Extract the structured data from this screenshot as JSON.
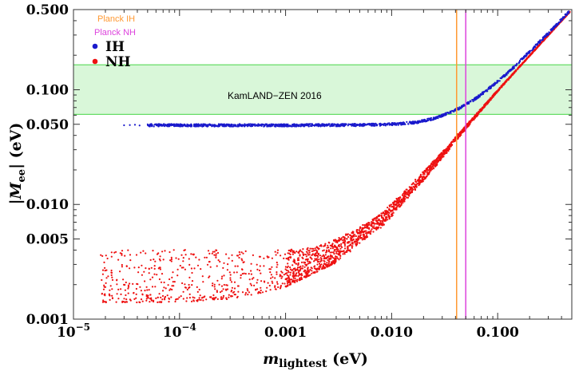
{
  "chart_data": {
    "type": "scatter",
    "xscale": "log",
    "yscale": "log",
    "xlim": [
      1e-05,
      0.5
    ],
    "ylim": [
      0.001,
      0.5
    ],
    "grid": false,
    "legend_placement": "top-left",
    "xlabel": {
      "main": "m",
      "sub": "lightest",
      "unit": " (eV)"
    },
    "ylabel": {
      "main": "|M",
      "sub": "ee",
      "unit": "| (eV)"
    },
    "x_ticks": [
      {
        "value": 1e-05,
        "base": "10",
        "exp": "−5"
      },
      {
        "value": 0.0001,
        "base": "10",
        "exp": "−4"
      },
      {
        "value": 0.001,
        "label": "0.001"
      },
      {
        "value": 0.01,
        "label": "0.010"
      },
      {
        "value": 0.1,
        "label": "0.100"
      }
    ],
    "y_ticks": [
      {
        "value": 0.001,
        "label": "0.001"
      },
      {
        "value": 0.005,
        "label": "0.005"
      },
      {
        "value": 0.01,
        "label": "0.010"
      },
      {
        "value": 0.05,
        "label": "0.050"
      },
      {
        "value": 0.1,
        "label": "0.100"
      },
      {
        "value": 0.5,
        "label": "0.500"
      }
    ],
    "band": {
      "label": "KamLAND−ZEN 2016",
      "ymin": 0.061,
      "ymax": 0.165,
      "fill": "#d9f7d9",
      "edge": "#66dd66"
    },
    "vlines": [
      {
        "name": "Planck IH",
        "x": 0.041,
        "color": "#ff9933"
      },
      {
        "name": "Planck NH",
        "x": 0.05,
        "color": "#dd44dd"
      }
    ],
    "series": [
      {
        "name": "IH",
        "color": "#1a1acc",
        "points": [
          [
            3e-05,
            0.049
          ],
          [
            3.4e-05,
            0.0492
          ],
          [
            3.8e-05,
            0.0495
          ],
          [
            4.2e-05,
            0.0488
          ],
          [
            5e-05,
            0.049
          ],
          [
            7e-05,
            0.0491
          ],
          [
            0.0001,
            0.049
          ],
          [
            0.0002,
            0.049
          ],
          [
            0.0005,
            0.049
          ],
          [
            0.001,
            0.049
          ],
          [
            0.002,
            0.0491
          ],
          [
            0.005,
            0.0493
          ],
          [
            0.008,
            0.0497
          ],
          [
            0.012,
            0.0505
          ],
          [
            0.017,
            0.052
          ],
          [
            0.022,
            0.0545
          ],
          [
            0.028,
            0.058
          ],
          [
            0.035,
            0.063
          ],
          [
            0.045,
            0.07
          ],
          [
            0.06,
            0.082
          ],
          [
            0.08,
            0.1
          ],
          [
            0.1,
            0.118
          ],
          [
            0.13,
            0.145
          ],
          [
            0.17,
            0.185
          ],
          [
            0.22,
            0.235
          ],
          [
            0.3,
            0.31
          ],
          [
            0.4,
            0.41
          ],
          [
            0.48,
            0.49
          ]
        ]
      },
      {
        "name": "NH",
        "color": "#ee1111",
        "band_upper": [
          [
            1.8e-05,
            0.004
          ],
          [
            5e-05,
            0.0042
          ],
          [
            0.0001,
            0.0042
          ],
          [
            0.0003,
            0.0041
          ],
          [
            0.0006,
            0.004
          ],
          [
            0.001,
            0.004
          ],
          [
            0.002,
            0.0044
          ],
          [
            0.003,
            0.005
          ],
          [
            0.005,
            0.0064
          ],
          [
            0.008,
            0.0085
          ],
          [
            0.01,
            0.0102
          ],
          [
            0.015,
            0.0148
          ],
          [
            0.02,
            0.0195
          ],
          [
            0.03,
            0.029
          ],
          [
            0.04,
            0.039
          ],
          [
            0.05,
            0.049
          ],
          [
            0.07,
            0.069
          ],
          [
            0.1,
            0.1
          ],
          [
            0.15,
            0.15
          ],
          [
            0.2,
            0.2
          ],
          [
            0.3,
            0.3
          ],
          [
            0.48,
            0.48
          ]
        ],
        "band_lower": [
          [
            1.8e-05,
            0.0014
          ],
          [
            5e-05,
            0.0014
          ],
          [
            0.0001,
            0.0014
          ],
          [
            0.0003,
            0.0015
          ],
          [
            0.0006,
            0.0017
          ],
          [
            0.001,
            0.0019
          ],
          [
            0.002,
            0.0026
          ],
          [
            0.003,
            0.0031
          ],
          [
            0.005,
            0.0045
          ],
          [
            0.008,
            0.0063
          ],
          [
            0.01,
            0.0077
          ],
          [
            0.015,
            0.012
          ],
          [
            0.02,
            0.016
          ],
          [
            0.03,
            0.025
          ],
          [
            0.04,
            0.035
          ],
          [
            0.05,
            0.045
          ],
          [
            0.07,
            0.065
          ],
          [
            0.1,
            0.096
          ],
          [
            0.15,
            0.146
          ],
          [
            0.2,
            0.196
          ],
          [
            0.3,
            0.296
          ],
          [
            0.48,
            0.476
          ]
        ]
      }
    ],
    "axis_color": "#333333"
  }
}
